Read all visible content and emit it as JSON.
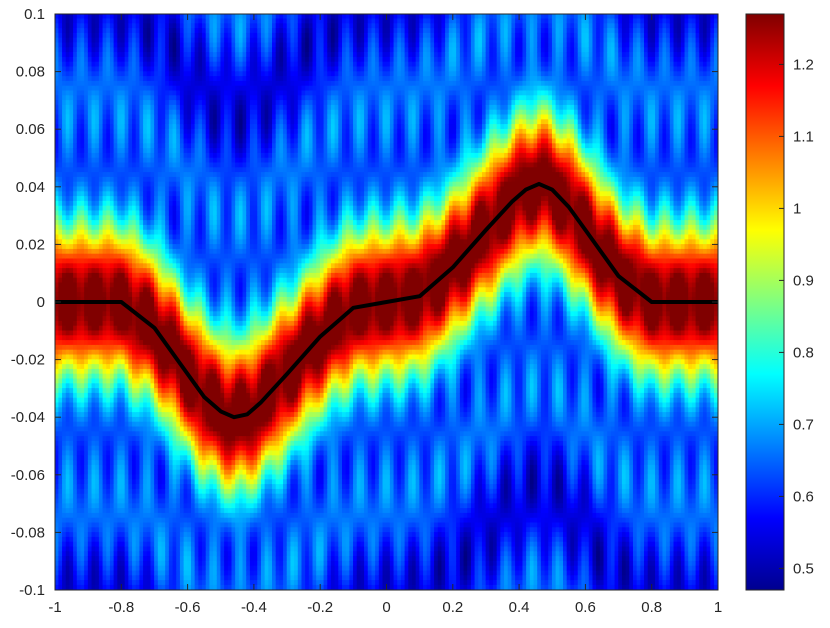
{
  "chart_data": {
    "type": "heatmap",
    "title": "",
    "xlabel": "",
    "ylabel": "",
    "xlim": [
      -1,
      1
    ],
    "ylim": [
      -0.1,
      0.1
    ],
    "x_ticks": [
      "-1",
      "-0.8",
      "-0.6",
      "-0.4",
      "-0.2",
      "0",
      "0.2",
      "0.4",
      "0.6",
      "0.8",
      "1"
    ],
    "y_ticks": [
      "0.1",
      "0.08",
      "0.06",
      "0.04",
      "0.02",
      "0",
      "-0.02",
      "-0.04",
      "-0.06",
      "-0.08",
      "-0.1"
    ],
    "colormap": "jet",
    "colorbar": {
      "range": [
        0.47,
        1.27
      ],
      "ticks": [
        "1.2",
        "1.1",
        "1",
        "0.9",
        "0.8",
        "0.7",
        "0.6",
        "0.5"
      ]
    },
    "curve": {
      "color": "#000000",
      "x": [
        -1,
        -0.8,
        -0.7,
        -0.6,
        -0.55,
        -0.5,
        -0.46,
        -0.42,
        -0.38,
        -0.3,
        -0.2,
        -0.1,
        0,
        0.1,
        0.2,
        0.3,
        0.38,
        0.42,
        0.46,
        0.5,
        0.55,
        0.6,
        0.7,
        0.8,
        1
      ],
      "y": [
        0,
        0,
        -0.009,
        -0.025,
        -0.033,
        -0.038,
        -0.04,
        -0.039,
        -0.035,
        -0.025,
        -0.012,
        -0.002,
        0,
        0.002,
        0.012,
        0.025,
        0.035,
        0.039,
        0.041,
        0.039,
        0.033,
        0.025,
        0.009,
        0,
        0
      ]
    }
  }
}
